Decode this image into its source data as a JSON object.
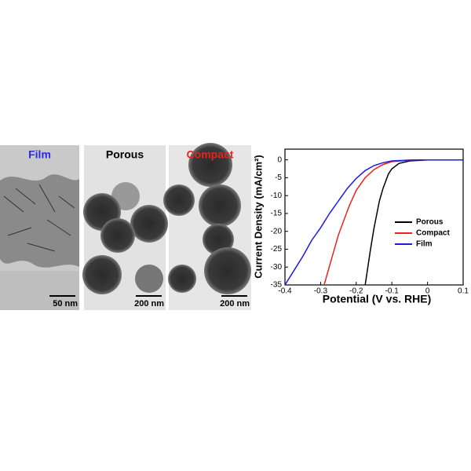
{
  "panels": [
    {
      "label": "Film",
      "scale": "50 nm"
    },
    {
      "label": "Porous",
      "scale": "200 nm"
    },
    {
      "label": "Compact",
      "scale": "200 nm"
    }
  ],
  "chart_data": {
    "type": "line",
    "x_label": "Potential (V vs. RHE)",
    "y_label": "Current Density (mA/cm²)",
    "xlim": [
      -0.4,
      0.1
    ],
    "ylim": [
      -35,
      3
    ],
    "xticks": [
      -0.4,
      -0.3,
      -0.2,
      -0.1,
      0.0,
      0.1
    ],
    "yticks": [
      0,
      -5,
      -10,
      -15,
      -20,
      -25,
      -30,
      -35
    ],
    "legend": "right",
    "series": [
      {
        "name": "Porous",
        "color": "#000000",
        "x": [
          -0.175,
          -0.16,
          -0.15,
          -0.135,
          -0.125,
          -0.11,
          -0.1,
          -0.08,
          -0.05,
          0,
          0.05,
          0.1
        ],
        "values": [
          -35,
          -25,
          -19,
          -11.5,
          -8,
          -4,
          -2.5,
          -1,
          -0.3,
          0,
          0,
          0
        ]
      },
      {
        "name": "Compact",
        "color": "#e8231f",
        "x": [
          -0.29,
          -0.27,
          -0.25,
          -0.22,
          -0.2,
          -0.175,
          -0.15,
          -0.125,
          -0.1,
          -0.05,
          0,
          0.05,
          0.1
        ],
        "values": [
          -35,
          -28,
          -21,
          -13,
          -8.5,
          -5,
          -2.7,
          -1.3,
          -0.5,
          -0.1,
          0,
          0,
          0
        ]
      },
      {
        "name": "Film",
        "color": "#1a1ae6",
        "x": [
          -0.4,
          -0.375,
          -0.35,
          -0.325,
          -0.3,
          -0.275,
          -0.25,
          -0.225,
          -0.2,
          -0.175,
          -0.15,
          -0.125,
          -0.1,
          -0.05,
          0,
          0.05,
          0.1
        ],
        "values": [
          -35,
          -31,
          -27,
          -22.5,
          -19,
          -15,
          -11.5,
          -8,
          -5.2,
          -3,
          -1.6,
          -0.8,
          -0.3,
          -0.05,
          0,
          0,
          0
        ]
      }
    ]
  }
}
